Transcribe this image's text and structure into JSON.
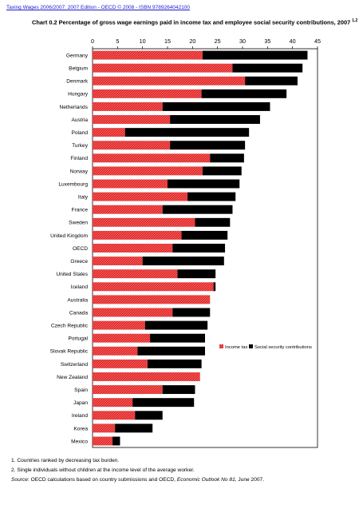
{
  "header_link": "Taxing Wages 2006/2007: 2007 Edition - OECD © 2008 - ISBN 9789264042100",
  "chart_title": "Chart  0.2 Percentage of gross wage earnings paid in income tax and employee social security contributions, 2007",
  "chart_title_sup": "1,2",
  "notes": {
    "note1": "1. Countries ranked by decreasing tax burden.",
    "note2": "2. Single individuals without children at the income level of the average worker.",
    "source_label": "Source",
    "source_text": ": OECD calculations based on country submissions and OECD,",
    "source_pub": "Economic Outlook No 81",
    "source_date": ", June 2007."
  },
  "colors": {
    "income_tax": "#ff4444",
    "social_security": "#000000"
  },
  "chart_data": {
    "type": "bar",
    "orientation": "horizontal",
    "stacked": true,
    "title": "Percentage of gross wage earnings paid in income tax and employee social security contributions, 2007",
    "xlim": [
      0,
      45
    ],
    "xticks": [
      0,
      5,
      10,
      15,
      20,
      25,
      30,
      35,
      40,
      45
    ],
    "x_axis_position": "top",
    "grid": false,
    "legend_position": "right",
    "categories": [
      "Germany",
      "Belgium",
      "Denmark",
      "Hungary",
      "Netherlands",
      "Austria",
      "Poland",
      "Turkey",
      "Finland",
      "Norway",
      "Luxembourg",
      "Italy",
      "France",
      "Sweden",
      "United Kingdom",
      "OECD",
      "Greece",
      "United States",
      "Iceland",
      "Australia",
      "Canada",
      "Czech Republic",
      "Portugal",
      "Slovak Republic",
      "Switzerland",
      "New Zealand",
      "Spain",
      "Japan",
      "Ireland",
      "Korea",
      "Mexico"
    ],
    "series": [
      {
        "name": "Income tax",
        "values": [
          22.0,
          28.0,
          30.5,
          21.8,
          14.0,
          15.5,
          6.5,
          15.5,
          23.5,
          22.0,
          15.0,
          19.0,
          14.0,
          20.5,
          17.8,
          16.0,
          10.0,
          17.0,
          24.2,
          23.5,
          16.0,
          10.5,
          11.5,
          9.0,
          11.0,
          21.5,
          14.0,
          8.0,
          8.5,
          4.5,
          4.0
        ]
      },
      {
        "name": "Social security contributions",
        "values": [
          21.0,
          14.0,
          10.5,
          17.0,
          21.5,
          18.0,
          24.8,
          15.0,
          6.8,
          7.8,
          14.4,
          9.6,
          14.0,
          7.0,
          9.2,
          10.5,
          16.3,
          7.6,
          0.4,
          0.0,
          7.5,
          12.5,
          11.0,
          13.5,
          10.8,
          0.0,
          6.5,
          12.3,
          5.5,
          7.5,
          1.5
        ]
      }
    ]
  }
}
